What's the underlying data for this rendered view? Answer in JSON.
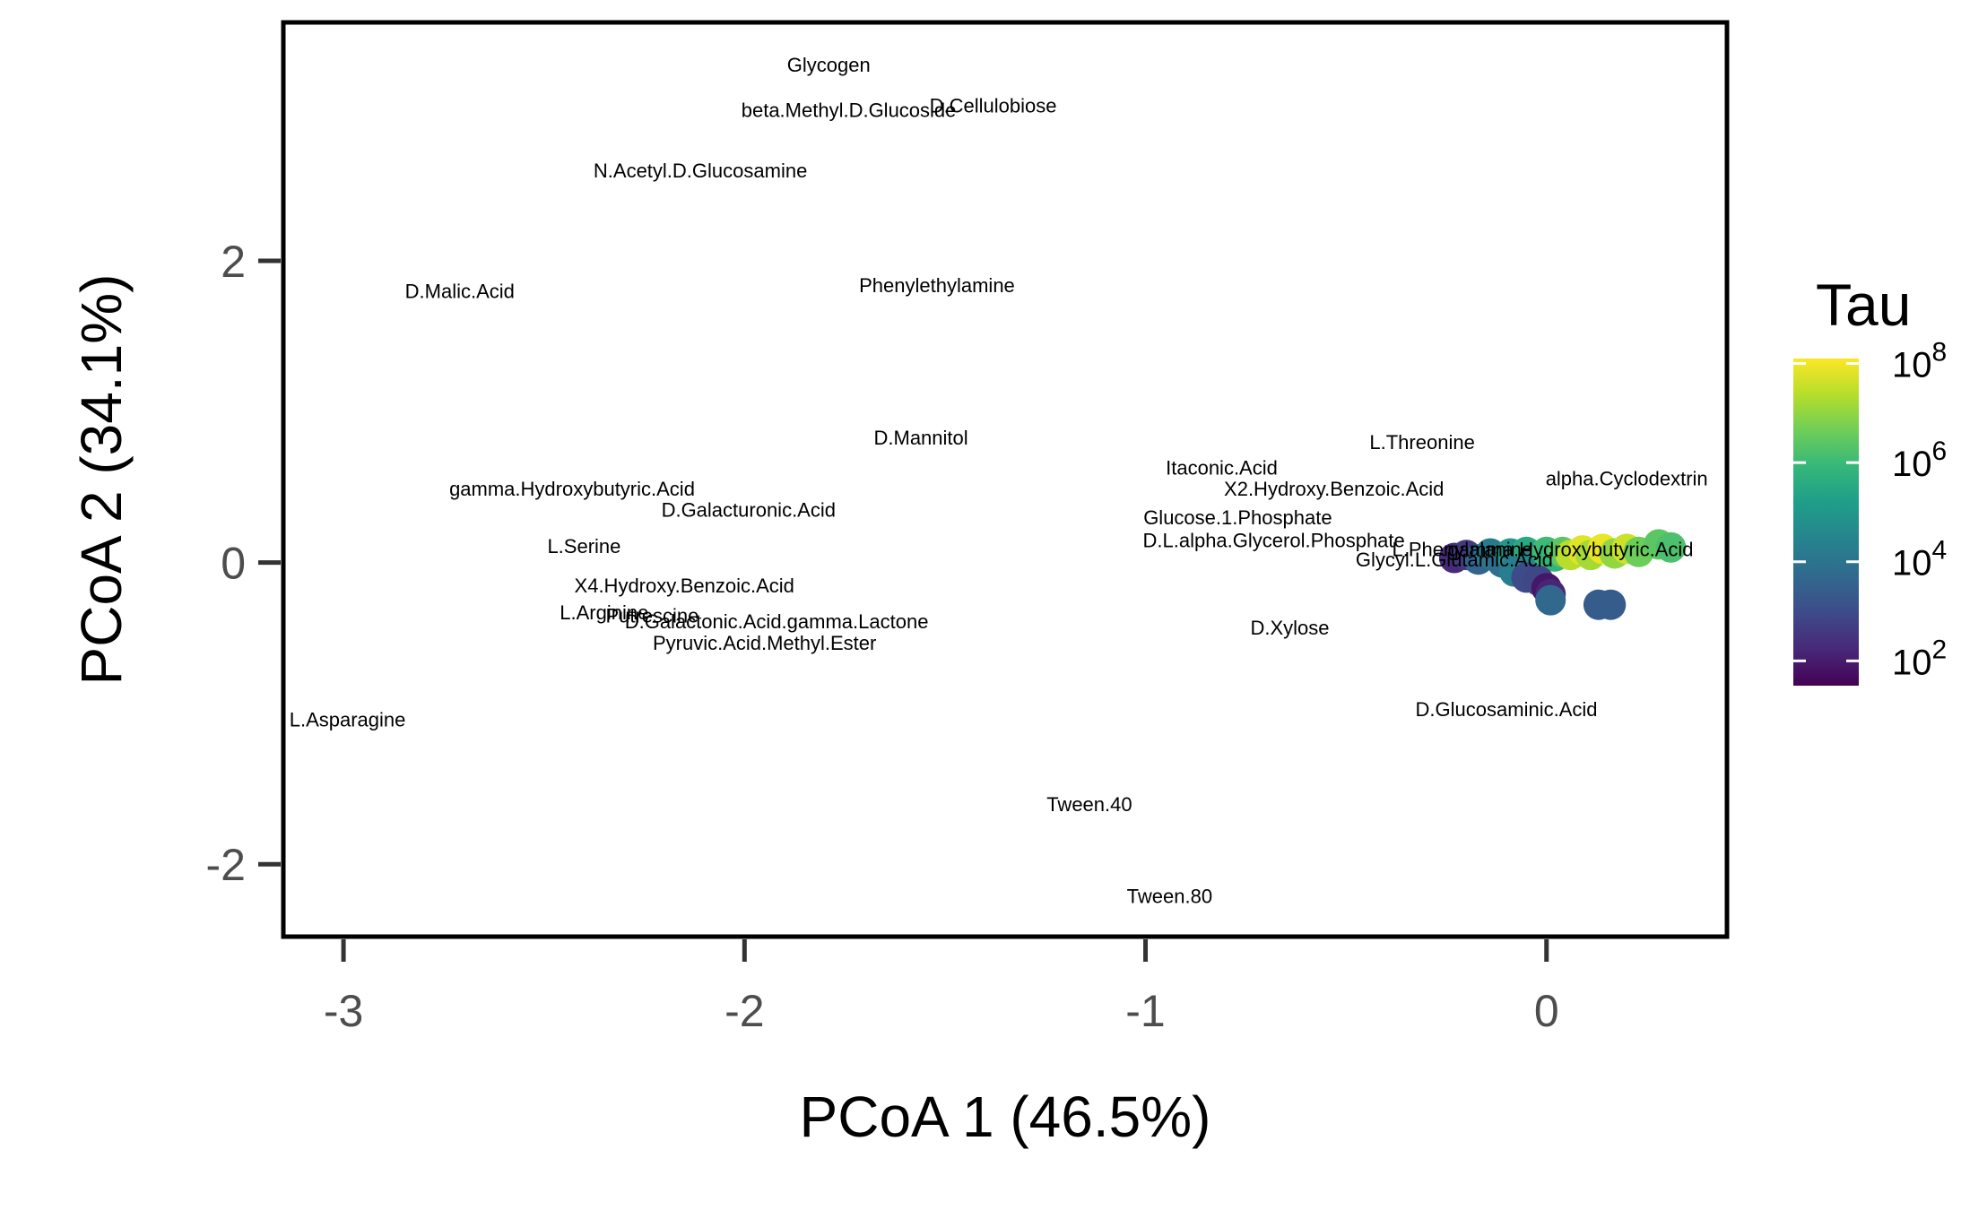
{
  "chart_data": {
    "type": "scatter",
    "xlabel": "PCoA 1 (46.5%)",
    "ylabel": "PCoA 2 (34.1%)",
    "xlim": [
      -3.15,
      0.45
    ],
    "ylim": [
      -2.48,
      3.58
    ],
    "xticks": [
      -3,
      -2,
      -1,
      0
    ],
    "xtick_labels": [
      "-3",
      "-2",
      "-1",
      "0"
    ],
    "yticks": [
      -2,
      0,
      2
    ],
    "ytick_labels": [
      "-2",
      "0",
      "2"
    ],
    "legend": {
      "title": "Tau",
      "type": "colorbar",
      "scale": "log10",
      "range_log10": [
        1.5,
        8.1
      ],
      "palette": [
        "#440154",
        "#482878",
        "#3e4a89",
        "#31688e",
        "#26828e",
        "#1f9e89",
        "#35b779",
        "#6ece58",
        "#b5de2b",
        "#fde725"
      ],
      "ticks_log10": [
        2,
        4,
        6,
        8
      ],
      "tick_base": "10",
      "tick_exponents": [
        "2",
        "4",
        "6",
        "8"
      ]
    },
    "labels": [
      {
        "text": "Glycogen",
        "x": -1.79,
        "y": 3.3
      },
      {
        "text": "beta.Methyl.D.Glucoside",
        "x": -1.74,
        "y": 3.0
      },
      {
        "text": "D.Cellulobiose",
        "x": -1.38,
        "y": 3.03
      },
      {
        "text": "N.Acetyl.D.Glucosamine",
        "x": -2.11,
        "y": 2.6
      },
      {
        "text": "D.Malic.Acid",
        "x": -2.71,
        "y": 1.8
      },
      {
        "text": "Phenylethylamine",
        "x": -1.52,
        "y": 1.84
      },
      {
        "text": "D.Mannitol",
        "x": -1.56,
        "y": 0.83
      },
      {
        "text": "L.Threonine",
        "x": -0.31,
        "y": 0.8
      },
      {
        "text": "Itaconic.Acid",
        "x": -0.81,
        "y": 0.63
      },
      {
        "text": "alpha.Cyclodextrin",
        "x": 0.2,
        "y": 0.56
      },
      {
        "text": "gamma.Hydroxybutyric.Acid",
        "x": -2.43,
        "y": 0.49
      },
      {
        "text": "X2.Hydroxy.Benzoic.Acid",
        "x": -0.53,
        "y": 0.49
      },
      {
        "text": "D.Galacturonic.Acid",
        "x": -1.99,
        "y": 0.35
      },
      {
        "text": "Glucose.1.Phosphate",
        "x": -0.77,
        "y": 0.3
      },
      {
        "text": "D.L.alpha.Glycerol.Phosphate",
        "x": -0.68,
        "y": 0.15
      },
      {
        "text": "L.Serine",
        "x": -2.4,
        "y": 0.11
      },
      {
        "text": "L.Phenylalanine",
        "x": -0.21,
        "y": 0.09
      },
      {
        "text": "gamma.Hydroxybutyric.Acid",
        "x": 0.06,
        "y": 0.09
      },
      {
        "text": "Glycyl.L.Glutamic.Acid",
        "x": -0.23,
        "y": 0.02
      },
      {
        "text": "X4.Hydroxy.Benzoic.Acid",
        "x": -2.15,
        "y": -0.15
      },
      {
        "text": "L.Arginine",
        "x": -2.35,
        "y": -0.33
      },
      {
        "text": "Putrescine",
        "x": -2.23,
        "y": -0.35
      },
      {
        "text": "D.Galactonic.Acid.gamma.Lactone",
        "x": -1.92,
        "y": -0.39
      },
      {
        "text": "Pyruvic.Acid.Methyl.Ester",
        "x": -1.95,
        "y": -0.53
      },
      {
        "text": "D.Xylose",
        "x": -0.64,
        "y": -0.43
      },
      {
        "text": "D.Glucosaminic.Acid",
        "x": -0.1,
        "y": -0.97
      },
      {
        "text": "L.Asparagine",
        "x": -2.99,
        "y": -1.04
      },
      {
        "text": "Tween.40",
        "x": -1.14,
        "y": -1.6
      },
      {
        "text": "Tween.80",
        "x": -0.94,
        "y": -2.21
      }
    ],
    "points": [
      {
        "x": -0.23,
        "y": 0.03,
        "log_tau": 2.3
      },
      {
        "x": -0.2,
        "y": 0.05,
        "log_tau": 2.6
      },
      {
        "x": -0.17,
        "y": 0.02,
        "log_tau": 3.6
      },
      {
        "x": -0.14,
        "y": 0.06,
        "log_tau": 4.2
      },
      {
        "x": -0.11,
        "y": 0.0,
        "log_tau": 3.9
      },
      {
        "x": -0.09,
        "y": 0.06,
        "log_tau": 5.0
      },
      {
        "x": -0.07,
        "y": 0.02,
        "log_tau": 4.4
      },
      {
        "x": -0.05,
        "y": 0.07,
        "log_tau": 5.5
      },
      {
        "x": -0.03,
        "y": -0.02,
        "log_tau": 3.8
      },
      {
        "x": -0.02,
        "y": 0.03,
        "log_tau": 4.6
      },
      {
        "x": 0.0,
        "y": 0.07,
        "log_tau": 6.0
      },
      {
        "x": 0.02,
        "y": 0.04,
        "log_tau": 5.8
      },
      {
        "x": 0.04,
        "y": 0.07,
        "log_tau": 6.4
      },
      {
        "x": 0.06,
        "y": 0.05,
        "log_tau": 7.4
      },
      {
        "x": 0.09,
        "y": 0.08,
        "log_tau": 7.8
      },
      {
        "x": 0.11,
        "y": 0.05,
        "log_tau": 7.2
      },
      {
        "x": 0.14,
        "y": 0.09,
        "log_tau": 7.9
      },
      {
        "x": 0.17,
        "y": 0.06,
        "log_tau": 7.0
      },
      {
        "x": 0.2,
        "y": 0.09,
        "log_tau": 7.6
      },
      {
        "x": 0.23,
        "y": 0.07,
        "log_tau": 6.6
      },
      {
        "x": 0.28,
        "y": 0.12,
        "log_tau": 6.4
      },
      {
        "x": 0.31,
        "y": 0.1,
        "log_tau": 6.2
      },
      {
        "x": -0.08,
        "y": -0.06,
        "log_tau": 4.3
      },
      {
        "x": -0.05,
        "y": -0.1,
        "log_tau": 3.0
      },
      {
        "x": -0.02,
        "y": -0.12,
        "log_tau": 2.9
      },
      {
        "x": 0.0,
        "y": -0.17,
        "log_tau": 1.9
      },
      {
        "x": 0.01,
        "y": -0.21,
        "log_tau": 2.2
      },
      {
        "x": 0.01,
        "y": -0.25,
        "log_tau": 3.7
      },
      {
        "x": 0.13,
        "y": -0.28,
        "log_tau": 3.4
      },
      {
        "x": 0.16,
        "y": -0.28,
        "log_tau": 3.4
      }
    ]
  }
}
